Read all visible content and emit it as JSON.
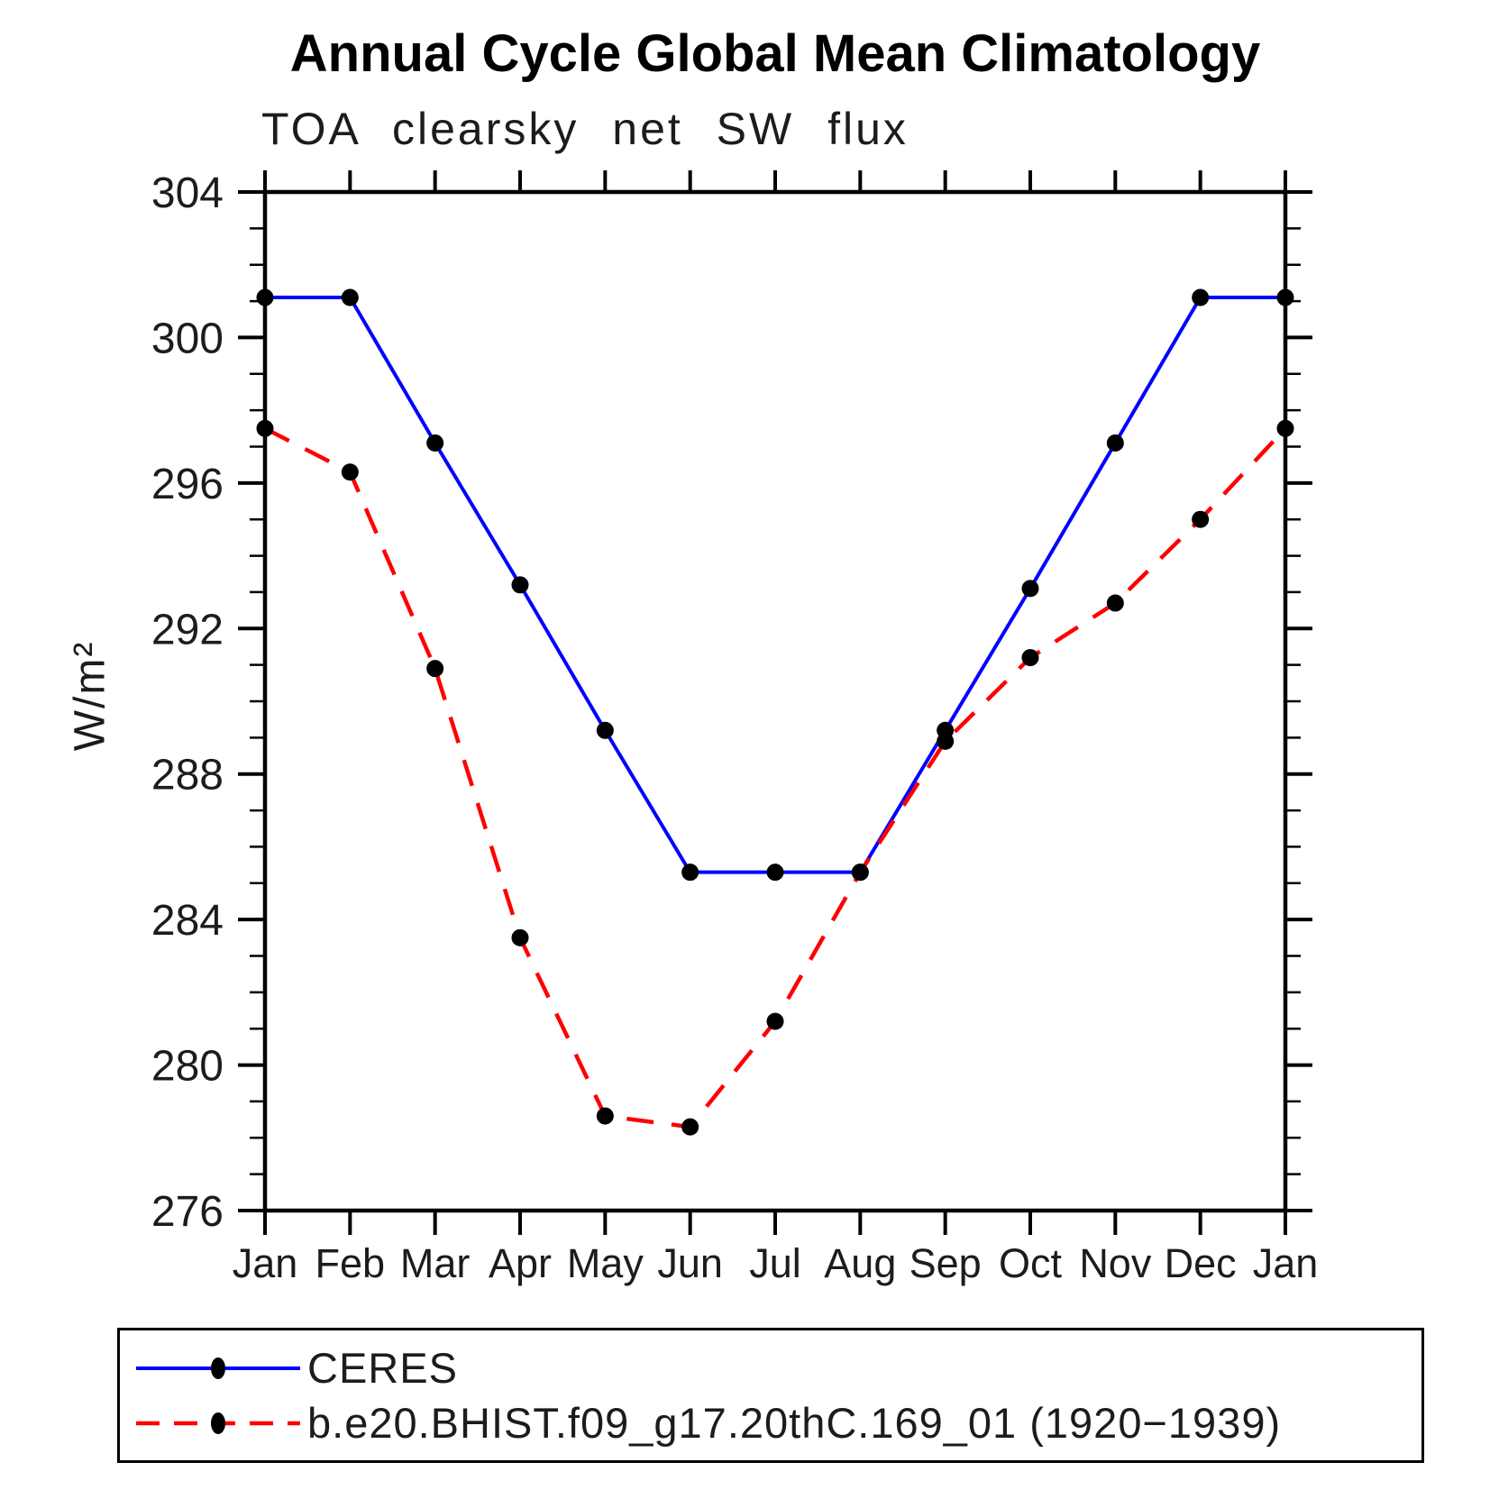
{
  "title": "Annual Cycle Global Mean Climatology",
  "subtitle": "TOA clearsky net SW flux",
  "colors": {
    "ceres_line": "#0000ff",
    "model_line": "#ff0000",
    "marker": "#000000",
    "axis": "#000000"
  },
  "chart_data": {
    "type": "line",
    "title": "Annual Cycle Global Mean Climatology",
    "subtitle": "TOA clearsky net SW flux",
    "ylabel": "W/m²",
    "xlabel": "",
    "x_tick_labels": [
      "Jan",
      "Feb",
      "Mar",
      "Apr",
      "May",
      "Jun",
      "Jul",
      "Aug",
      "Sep",
      "Oct",
      "Nov",
      "Dec",
      "Jan"
    ],
    "ylim": [
      276,
      304
    ],
    "y_major_ticks": [
      276,
      280,
      284,
      288,
      292,
      296,
      300,
      304
    ],
    "y_minor_step": 1,
    "grid": false,
    "legend_position": "bottom-box",
    "series": [
      {
        "name": "CERES",
        "color": "#0000ff",
        "line_style": "solid",
        "marker": "filled-circle",
        "marker_color": "#000000",
        "values": [
          301.1,
          301.1,
          297.1,
          293.2,
          289.2,
          285.3,
          285.3,
          285.3,
          289.2,
          293.1,
          297.1,
          301.1,
          301.1
        ]
      },
      {
        "name": "b.e20.BHIST.f09_g17.20thC.169_01 (1920−1939)",
        "color": "#ff0000",
        "line_style": "dashed",
        "marker": "filled-circle",
        "marker_color": "#000000",
        "values": [
          297.5,
          296.3,
          290.9,
          283.5,
          278.6,
          278.3,
          281.2,
          285.3,
          288.9,
          291.2,
          292.7,
          295.0,
          297.5
        ]
      }
    ]
  }
}
